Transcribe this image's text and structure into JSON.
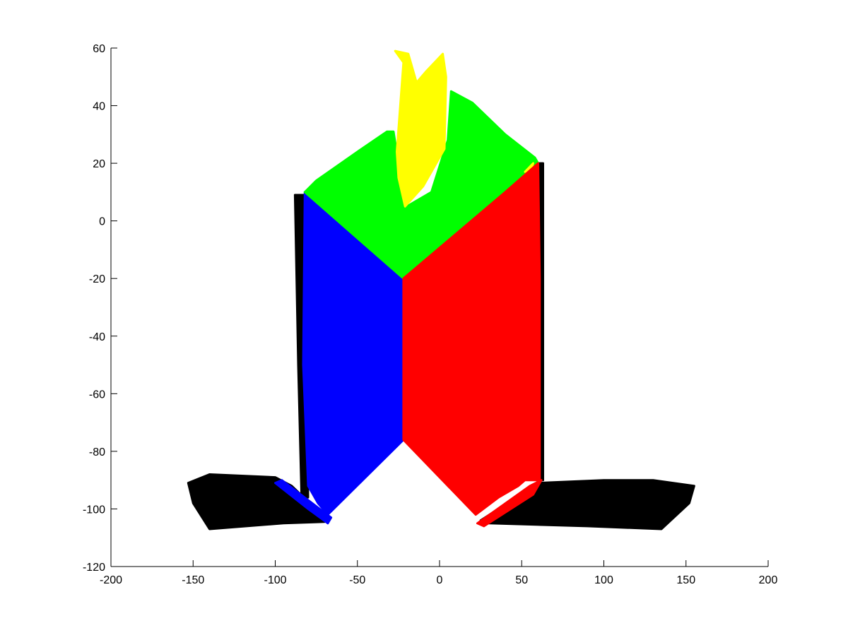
{
  "chart_data": {
    "type": "scatter",
    "title": "",
    "xlabel": "",
    "ylabel": "",
    "xlim": [
      -200,
      200
    ],
    "ylim": [
      -120,
      60
    ],
    "xticks": [
      -200,
      -150,
      -100,
      -50,
      0,
      50,
      100,
      150,
      200
    ],
    "yticks": [
      -120,
      -100,
      -80,
      -60,
      -40,
      -20,
      0,
      20,
      40,
      60
    ],
    "grid": false,
    "legend": "none",
    "marker": "diamond",
    "series": [
      {
        "color": "#000000",
        "regions": [
          [
            [
              -153,
              -91
            ],
            [
              -140,
              -88
            ],
            [
              -100,
              -89
            ],
            [
              -90,
              -92
            ],
            [
              -68,
              -104
            ],
            [
              -70,
              -104.5
            ],
            [
              -95,
              -105
            ],
            [
              -140,
              -107
            ],
            [
              -150,
              -98
            ]
          ],
          [
            [
              25,
              -104
            ],
            [
              60,
              -91
            ],
            [
              100,
              -90
            ],
            [
              130,
              -90
            ],
            [
              155,
              -92
            ],
            [
              152,
              -98
            ],
            [
              135,
              -107
            ],
            [
              90,
              -106
            ],
            [
              30,
              -105
            ]
          ],
          [
            [
              59,
              20
            ],
            [
              63,
              20
            ],
            [
              63,
              -90
            ],
            [
              59,
              -90
            ]
          ],
          [
            [
              -88,
              9
            ],
            [
              -82,
              9
            ],
            [
              -80,
              -96
            ],
            [
              -84,
              -96
            ],
            [
              -86,
              -50
            ]
          ],
          [
            [
              -23,
              -21
            ],
            [
              10,
              -5
            ],
            [
              12,
              -4
            ],
            [
              -22,
              -23
            ]
          ]
        ]
      },
      {
        "color": "#0000ff",
        "regions": [
          [
            [
              -82,
              10
            ],
            [
              -22,
              -20
            ],
            [
              -22,
              -76
            ],
            [
              -68,
              -102
            ],
            [
              -74,
              -98
            ],
            [
              -80,
              -92
            ],
            [
              -83,
              -50
            ]
          ],
          [
            [
              -100,
              -91
            ],
            [
              -96,
              -90
            ],
            [
              -66,
              -103
            ],
            [
              -68,
              -105
            ],
            [
              -80,
              -100
            ]
          ]
        ]
      },
      {
        "color": "#00ff00",
        "regions": [
          [
            [
              -82,
              10
            ],
            [
              -75,
              14
            ],
            [
              -50,
              24
            ],
            [
              -32,
              31
            ],
            [
              -28,
              31
            ],
            [
              -25,
              20
            ],
            [
              -23,
              18
            ],
            [
              -22,
              10
            ],
            [
              -20,
              5
            ],
            [
              -5,
              10
            ],
            [
              5,
              28
            ],
            [
              7,
              45
            ],
            [
              20,
              41
            ],
            [
              40,
              30
            ],
            [
              58,
              22
            ],
            [
              60,
              20
            ],
            [
              35,
              2
            ],
            [
              -22,
              -20
            ]
          ]
        ]
      },
      {
        "color": "#ffff00",
        "regions": [
          [
            [
              -26,
              24
            ],
            [
              -22,
              55
            ],
            [
              -27,
              59
            ],
            [
              -19,
              58
            ],
            [
              -14,
              48
            ],
            [
              -8,
              52
            ],
            [
              2,
              58
            ],
            [
              4,
              50
            ],
            [
              3,
              25
            ],
            [
              -10,
              12
            ],
            [
              -21,
              5
            ],
            [
              -25,
              15
            ]
          ],
          [
            [
              14,
              -4
            ],
            [
              39,
              7
            ],
            [
              41,
              9
            ],
            [
              14,
              -3
            ]
          ],
          [
            [
              52,
              17
            ],
            [
              57,
              20
            ],
            [
              56,
              18
            ]
          ]
        ]
      },
      {
        "color": "#ff0000",
        "regions": [
          [
            [
              -22,
              -20
            ],
            [
              40,
              10
            ],
            [
              60,
              20
            ],
            [
              61,
              -20
            ],
            [
              61,
              -90
            ],
            [
              52,
              -90
            ],
            [
              48,
              -92
            ],
            [
              36,
              -96
            ],
            [
              22,
              -102
            ],
            [
              -22,
              -76
            ]
          ],
          [
            [
              23,
              -105
            ],
            [
              55,
              -92
            ],
            [
              62,
              -90
            ],
            [
              57,
              -95
            ],
            [
              27,
              -106
            ]
          ]
        ]
      }
    ]
  }
}
